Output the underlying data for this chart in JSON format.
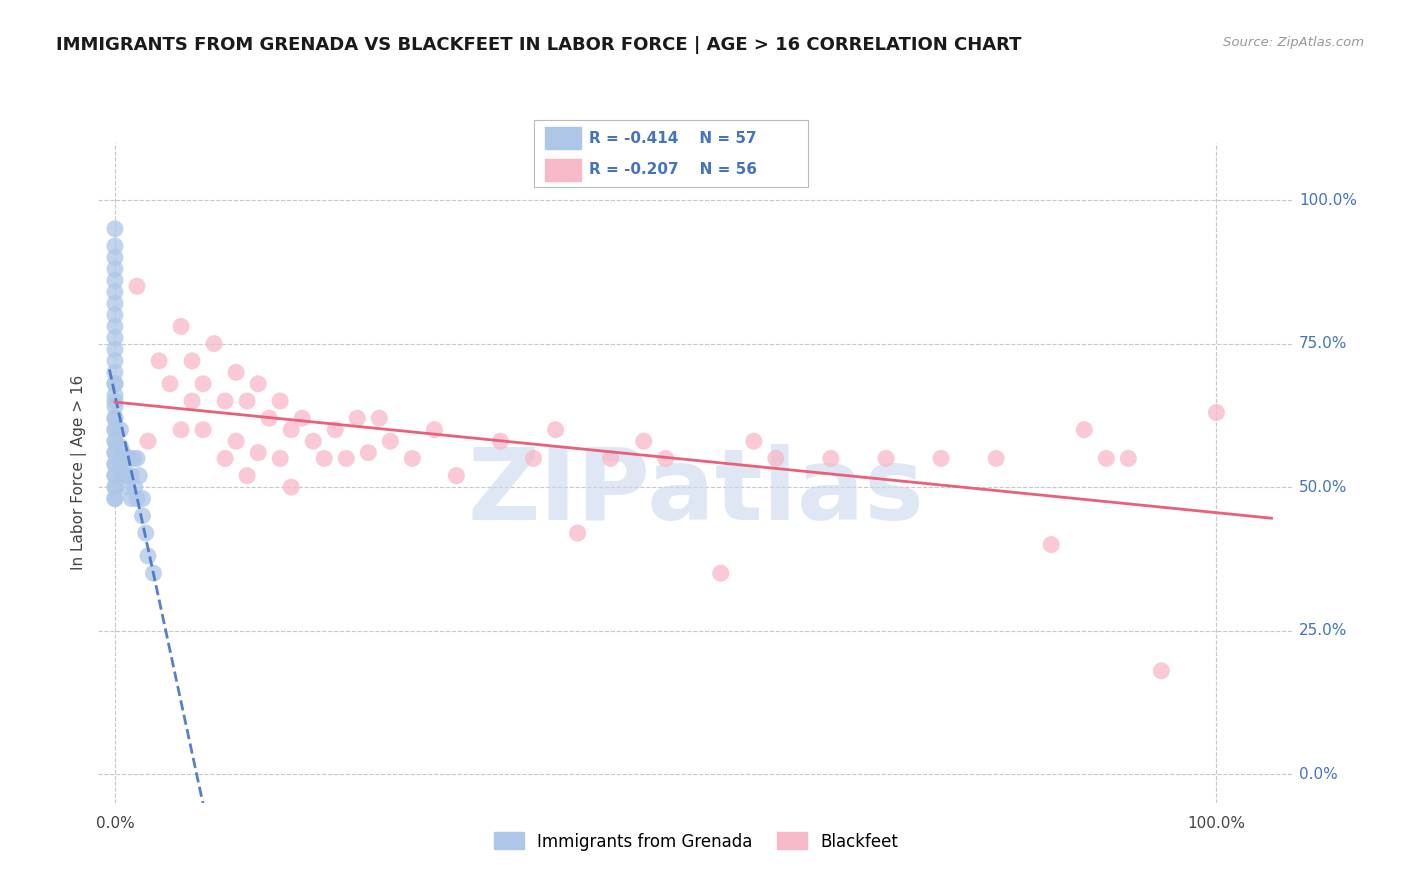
{
  "title": "IMMIGRANTS FROM GRENADA VS BLACKFEET IN LABOR FORCE | AGE > 16 CORRELATION CHART",
  "source_text": "Source: ZipAtlas.com",
  "ylabel": "In Labor Force | Age > 16",
  "legend_label_1": "Immigrants from Grenada",
  "legend_label_2": "Blackfeet",
  "r1": -0.414,
  "n1": 57,
  "r2": -0.207,
  "n2": 56,
  "color1": "#aec6e8",
  "color2": "#f7b8c8",
  "line_color1": "#4472c4",
  "line_color2": "#e8607a",
  "trendline1_color": "#8090c8",
  "watermark": "ZIPatlas",
  "watermark_color": "#c8d8ec",
  "background_color": "#ffffff",
  "grid_color": "#c8c8c8",
  "ytick_values": [
    0.0,
    0.25,
    0.5,
    0.75,
    1.0
  ],
  "ytick_labels_right": [
    "0.0%",
    "25.0%",
    "50.0%",
    "75.0%",
    "100.0%"
  ],
  "xtick_labels": [
    "0.0%",
    "100.0%"
  ],
  "xtick_values": [
    0.0,
    1.0
  ],
  "xlim": [
    -0.015,
    1.07
  ],
  "ylim": [
    -0.05,
    1.1
  ],
  "grenada_x": [
    0.0,
    0.0,
    0.0,
    0.0,
    0.0,
    0.0,
    0.0,
    0.0,
    0.0,
    0.0,
    0.0,
    0.0,
    0.0,
    0.0,
    0.0,
    0.0,
    0.0,
    0.0,
    0.0,
    0.0,
    0.0,
    0.0,
    0.0,
    0.0,
    0.0,
    0.0,
    0.0,
    0.0,
    0.0,
    0.0,
    0.0,
    0.0,
    0.0,
    0.0,
    0.005,
    0.005,
    0.005,
    0.007,
    0.007,
    0.008,
    0.009,
    0.01,
    0.01,
    0.012,
    0.013,
    0.015,
    0.015,
    0.017,
    0.018,
    0.02,
    0.02,
    0.022,
    0.025,
    0.025,
    0.028,
    0.03,
    0.035
  ],
  "grenada_y": [
    0.95,
    0.92,
    0.9,
    0.88,
    0.86,
    0.84,
    0.82,
    0.8,
    0.78,
    0.76,
    0.74,
    0.72,
    0.7,
    0.68,
    0.66,
    0.64,
    0.62,
    0.6,
    0.58,
    0.56,
    0.54,
    0.52,
    0.5,
    0.48,
    0.68,
    0.65,
    0.62,
    0.6,
    0.58,
    0.56,
    0.54,
    0.52,
    0.5,
    0.48,
    0.6,
    0.57,
    0.54,
    0.56,
    0.52,
    0.55,
    0.52,
    0.55,
    0.5,
    0.52,
    0.55,
    0.52,
    0.48,
    0.55,
    0.5,
    0.55,
    0.48,
    0.52,
    0.48,
    0.45,
    0.42,
    0.38,
    0.35
  ],
  "blackfeet_x": [
    0.02,
    0.03,
    0.04,
    0.05,
    0.06,
    0.06,
    0.07,
    0.07,
    0.08,
    0.08,
    0.09,
    0.1,
    0.1,
    0.11,
    0.11,
    0.12,
    0.12,
    0.13,
    0.13,
    0.14,
    0.15,
    0.15,
    0.16,
    0.16,
    0.17,
    0.18,
    0.19,
    0.2,
    0.21,
    0.22,
    0.23,
    0.24,
    0.25,
    0.27,
    0.29,
    0.31,
    0.35,
    0.38,
    0.4,
    0.42,
    0.45,
    0.48,
    0.5,
    0.55,
    0.58,
    0.6,
    0.65,
    0.7,
    0.75,
    0.8,
    0.85,
    0.88,
    0.9,
    0.92,
    0.95,
    1.0
  ],
  "blackfeet_y": [
    0.85,
    0.58,
    0.72,
    0.68,
    0.78,
    0.6,
    0.72,
    0.65,
    0.68,
    0.6,
    0.75,
    0.65,
    0.55,
    0.7,
    0.58,
    0.65,
    0.52,
    0.68,
    0.56,
    0.62,
    0.65,
    0.55,
    0.6,
    0.5,
    0.62,
    0.58,
    0.55,
    0.6,
    0.55,
    0.62,
    0.56,
    0.62,
    0.58,
    0.55,
    0.6,
    0.52,
    0.58,
    0.55,
    0.6,
    0.42,
    0.55,
    0.58,
    0.55,
    0.35,
    0.58,
    0.55,
    0.55,
    0.55,
    0.55,
    0.55,
    0.4,
    0.6,
    0.55,
    0.55,
    0.18,
    0.63
  ]
}
